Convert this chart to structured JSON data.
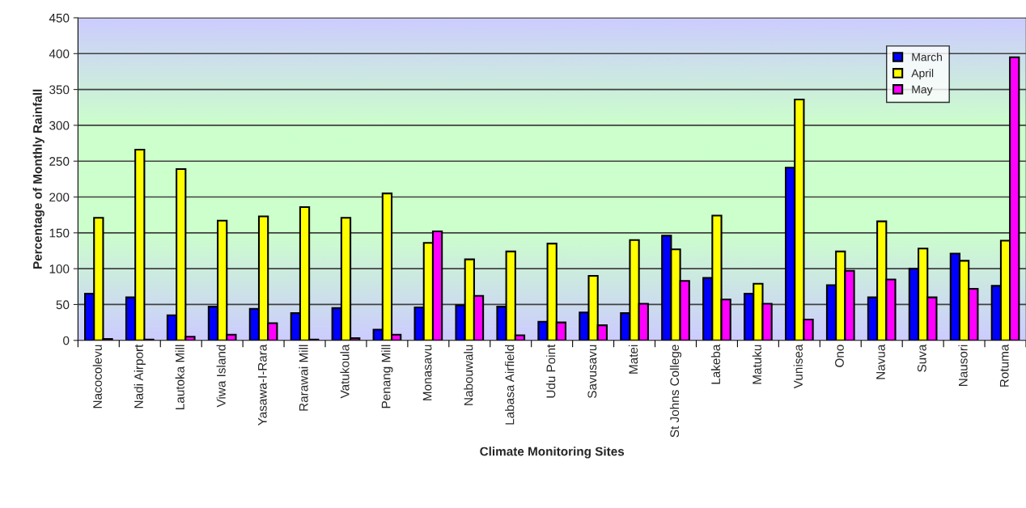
{
  "chart_data": {
    "type": "bar",
    "xlabel": "Climate Monitoring Sites",
    "ylabel": "Percentage of Monthly Rainfall",
    "categories": [
      "Nacocolevu",
      "Nadi Airport",
      "Lautoka Mill",
      "Viwa Island",
      "Yasawa-I-Rara",
      "Rarawai Mill",
      "Vatukoula",
      "Penang Mill",
      "Monasavu",
      "Nabouwalu",
      "Labasa Airfield",
      "Udu Point",
      "Savusavu",
      "Matei",
      "St Johns College",
      "Lakeba",
      "Matuku",
      "Vunisea",
      "Ono",
      "Navua",
      "Suva",
      "Nausori",
      "Rotuma"
    ],
    "series": [
      {
        "name": "March",
        "color": "#0000ff",
        "values": [
          65,
          60,
          35,
          47,
          44,
          38,
          45,
          15,
          46,
          49,
          47,
          26,
          39,
          38,
          146,
          87,
          65,
          241,
          77,
          60,
          100,
          121,
          76
        ]
      },
      {
        "name": "April",
        "color": "#ffff00",
        "values": [
          171,
          266,
          239,
          167,
          173,
          186,
          171,
          205,
          136,
          113,
          124,
          135,
          90,
          140,
          127,
          174,
          79,
          336,
          124,
          166,
          128,
          111,
          139
        ]
      },
      {
        "name": "May",
        "color": "#ff00ff",
        "values": [
          2,
          1,
          5,
          8,
          24,
          1,
          3,
          8,
          152,
          62,
          7,
          25,
          21,
          51,
          83,
          57,
          51,
          29,
          97,
          85,
          60,
          72,
          395
        ]
      }
    ],
    "ylim": [
      0,
      450
    ],
    "yticks": [
      0,
      50,
      100,
      150,
      200,
      250,
      300,
      350,
      400,
      450
    ],
    "grid": "y",
    "legend": "top right"
  }
}
